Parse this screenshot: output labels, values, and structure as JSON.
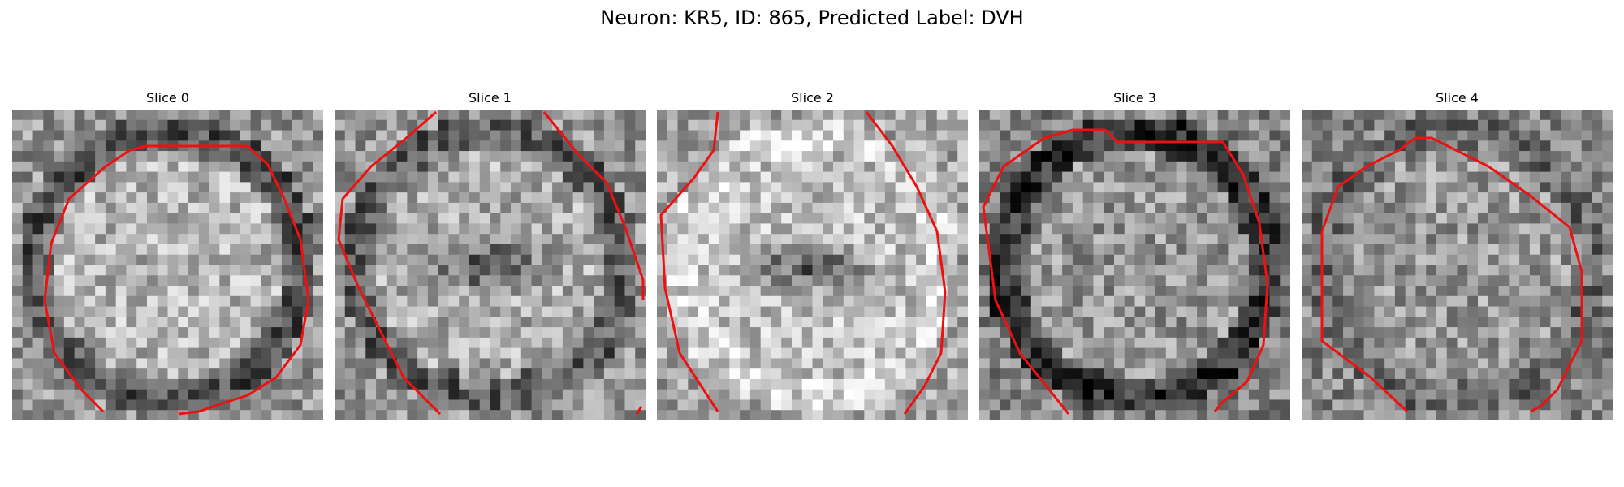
{
  "figure": {
    "title": "Neuron: KR5, ID: 865, Predicted Label: DVH"
  },
  "panels": [
    {
      "title": "Slice 0",
      "image": "noisy grayscale micrograph of a roughly circular cell",
      "contour_color": "#ee1111"
    },
    {
      "title": "Slice 1",
      "image": "noisy grayscale micrograph with dark central nucleus",
      "contour_color": "#ee1111"
    },
    {
      "title": "Slice 2",
      "image": "noisy grayscale micrograph with bright ring and dark center",
      "contour_color": "#ee1111"
    },
    {
      "title": "Slice 3",
      "image": "noisy grayscale micrograph of cell with dark border",
      "contour_color": "#ee1111"
    },
    {
      "title": "Slice 4",
      "image": "noisy grayscale micrograph, faint cell body",
      "contour_color": "#ee1111"
    }
  ]
}
